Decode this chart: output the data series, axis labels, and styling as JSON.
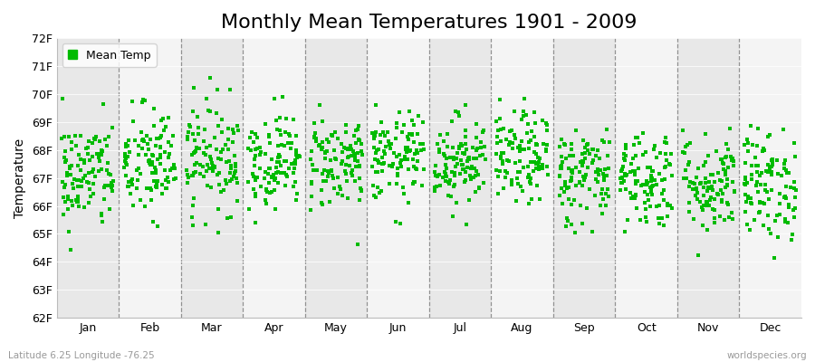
{
  "title": "Monthly Mean Temperatures 1901 - 2009",
  "ylabel": "Temperature",
  "bottom_left": "Latitude 6.25 Longitude -76.25",
  "bottom_right": "worldspecies.org",
  "legend_label": "Mean Temp",
  "months": [
    "Jan",
    "Feb",
    "Mar",
    "Apr",
    "May",
    "Jun",
    "Jul",
    "Aug",
    "Sep",
    "Oct",
    "Nov",
    "Dec"
  ],
  "ylim": [
    62,
    72
  ],
  "yticks": [
    62,
    63,
    64,
    65,
    66,
    67,
    68,
    69,
    70,
    71,
    72
  ],
  "ytick_labels": [
    "62F",
    "63F",
    "64F",
    "65F",
    "66F",
    "67F",
    "68F",
    "69F",
    "70F",
    "71F",
    "72F"
  ],
  "dot_color": "#00bb00",
  "dot_size": 12,
  "n_years": 109,
  "seed": 42,
  "mean_temps_f": [
    67.1,
    67.5,
    67.8,
    67.65,
    67.6,
    67.7,
    67.65,
    67.7,
    67.1,
    67.0,
    66.8,
    66.75
  ],
  "std_temps_f": [
    1.0,
    1.05,
    1.0,
    0.85,
    0.85,
    0.8,
    0.8,
    0.82,
    0.9,
    0.9,
    0.9,
    1.0
  ],
  "title_fontsize": 16,
  "axis_label_fontsize": 10,
  "tick_fontsize": 9,
  "band_color_odd": "#e8e8e8",
  "band_color_even": "#f4f4f4",
  "figure_bg": "#ffffff"
}
